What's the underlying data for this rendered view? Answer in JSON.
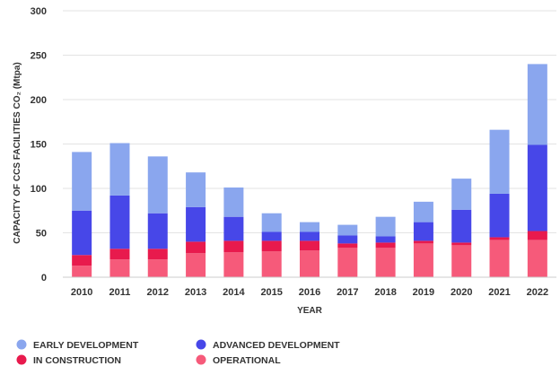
{
  "chart_data": {
    "type": "bar",
    "stacked": true,
    "categories": [
      "2010",
      "2011",
      "2012",
      "2013",
      "2014",
      "2015",
      "2016",
      "2017",
      "2018",
      "2019",
      "2020",
      "2021",
      "2022"
    ],
    "series": [
      {
        "name": "OPERATIONAL",
        "color": "#f65a7a",
        "values": [
          13,
          20,
          20,
          27,
          28,
          29,
          30,
          33,
          33,
          38,
          36,
          42,
          42
        ]
      },
      {
        "name": "IN CONSTRUCTION",
        "color": "#e81a4d",
        "values": [
          12,
          12,
          12,
          13,
          13,
          12,
          11,
          5,
          6,
          3,
          3,
          3,
          10
        ]
      },
      {
        "name": "ADVANCED DEVELOPMENT",
        "color": "#4747e8",
        "values": [
          50,
          60,
          40,
          39,
          27,
          10,
          10,
          9,
          7,
          21,
          37,
          49,
          97
        ]
      },
      {
        "name": "EARLY DEVELOPMENT",
        "color": "#8aa6ee",
        "values": [
          66,
          59,
          64,
          39,
          33,
          21,
          11,
          12,
          22,
          23,
          35,
          72,
          91
        ]
      }
    ],
    "xlabel": "YEAR",
    "ylabel": "CAPACITY OF CCS FACILITIES CO₂ (Mtpa)",
    "ylim": [
      0,
      300
    ],
    "yticks": [
      0,
      50,
      100,
      150,
      200,
      250,
      300
    ],
    "grid": "horizontal",
    "legend_order": [
      "EARLY DEVELOPMENT",
      "ADVANCED DEVELOPMENT",
      "IN CONSTRUCTION",
      "OPERATIONAL"
    ],
    "legend_position": "bottom-left"
  }
}
